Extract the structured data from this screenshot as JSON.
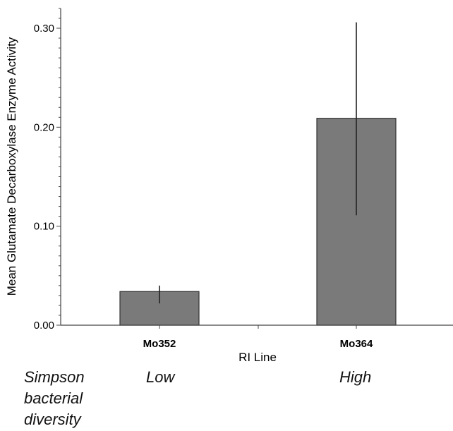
{
  "chart_data": {
    "type": "bar",
    "categories": [
      "Mo352",
      "Mo364"
    ],
    "values": [
      0.034,
      0.209
    ],
    "error_low": [
      0.022,
      0.111
    ],
    "error_high": [
      0.04,
      0.306
    ],
    "xlabel": "RI Line",
    "ylabel": "Mean Glutamate Decarboxylase Enzyme Activity",
    "ylim": [
      0,
      0.32
    ],
    "yticks": [
      "0.00",
      "0.10",
      "0.20",
      "0.30"
    ],
    "bar_color": "#7a7a7a",
    "grid": false
  },
  "annotations": {
    "row_title_line1": "Simpson",
    "row_title_line2": "bacterial",
    "row_title_line3": "diversity",
    "group_labels": [
      "Low",
      "High"
    ]
  }
}
